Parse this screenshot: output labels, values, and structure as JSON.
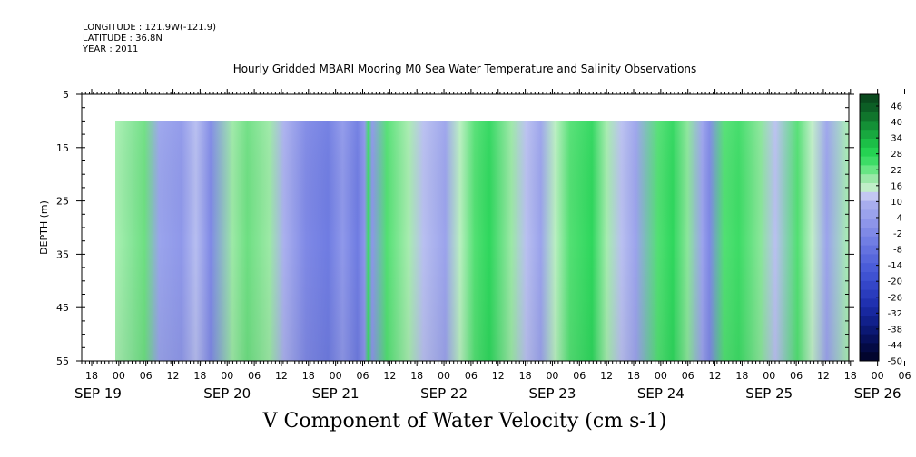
{
  "header": {
    "longitude": "LONGITUDE : 121.9W(-121.9)",
    "latitude": "LATITUDE : 36.8N",
    "year": "YEAR : 2011"
  },
  "chart_data": {
    "type": "heatmap",
    "title": "Hourly Gridded MBARI Mooring M0 Sea Water Temperature and Salinity Observations",
    "xlabel": "V Component of Water Velocity (cm s-1)",
    "ylabel": "DEPTH (m)",
    "ylim": [
      5,
      55
    ],
    "yticks": [
      5,
      15,
      25,
      35,
      45,
      55
    ],
    "data_depth_range": [
      10,
      55
    ],
    "x_hour_ticks": [
      "18",
      "00",
      "06",
      "12",
      "18",
      "00",
      "06",
      "12",
      "18",
      "00",
      "06",
      "12",
      "18",
      "00",
      "06",
      "12",
      "18",
      "00",
      "06",
      "12",
      "18",
      "00",
      "06",
      "12",
      "18",
      "00",
      "06",
      "12",
      "18",
      "00",
      "06",
      "12"
    ],
    "x_date_labels": [
      "SEP 19",
      "SEP 20",
      "SEP 21",
      "SEP 22",
      "SEP 23",
      "SEP 24",
      "SEP 25",
      "SEP 26"
    ],
    "colorbar": {
      "labels": [
        "46",
        "40",
        "34",
        "28",
        "22",
        "16",
        "10",
        "4",
        "-2",
        "-8",
        "-14",
        "-20",
        "-26",
        "-32",
        "-38",
        "-44",
        "-50"
      ],
      "colors": [
        "#0a4a1e",
        "#0c5e25",
        "#10752c",
        "#149036",
        "#18a83f",
        "#1cbf47",
        "#25d252",
        "#3ddc66",
        "#68e584",
        "#9ae8a8",
        "#c0eec8",
        "#c3c7f2",
        "#a8adee",
        "#9aa2ec",
        "#8d95ea",
        "#7f89e6",
        "#717ee4",
        "#6472e0",
        "#5767dc",
        "#4a5cd8",
        "#3f52d2",
        "#3446c8",
        "#2a3cbd",
        "#2031b0",
        "#18289f",
        "#11208b",
        "#0b1874",
        "#07105c",
        "#040a44",
        "#02052e"
      ]
    }
  }
}
